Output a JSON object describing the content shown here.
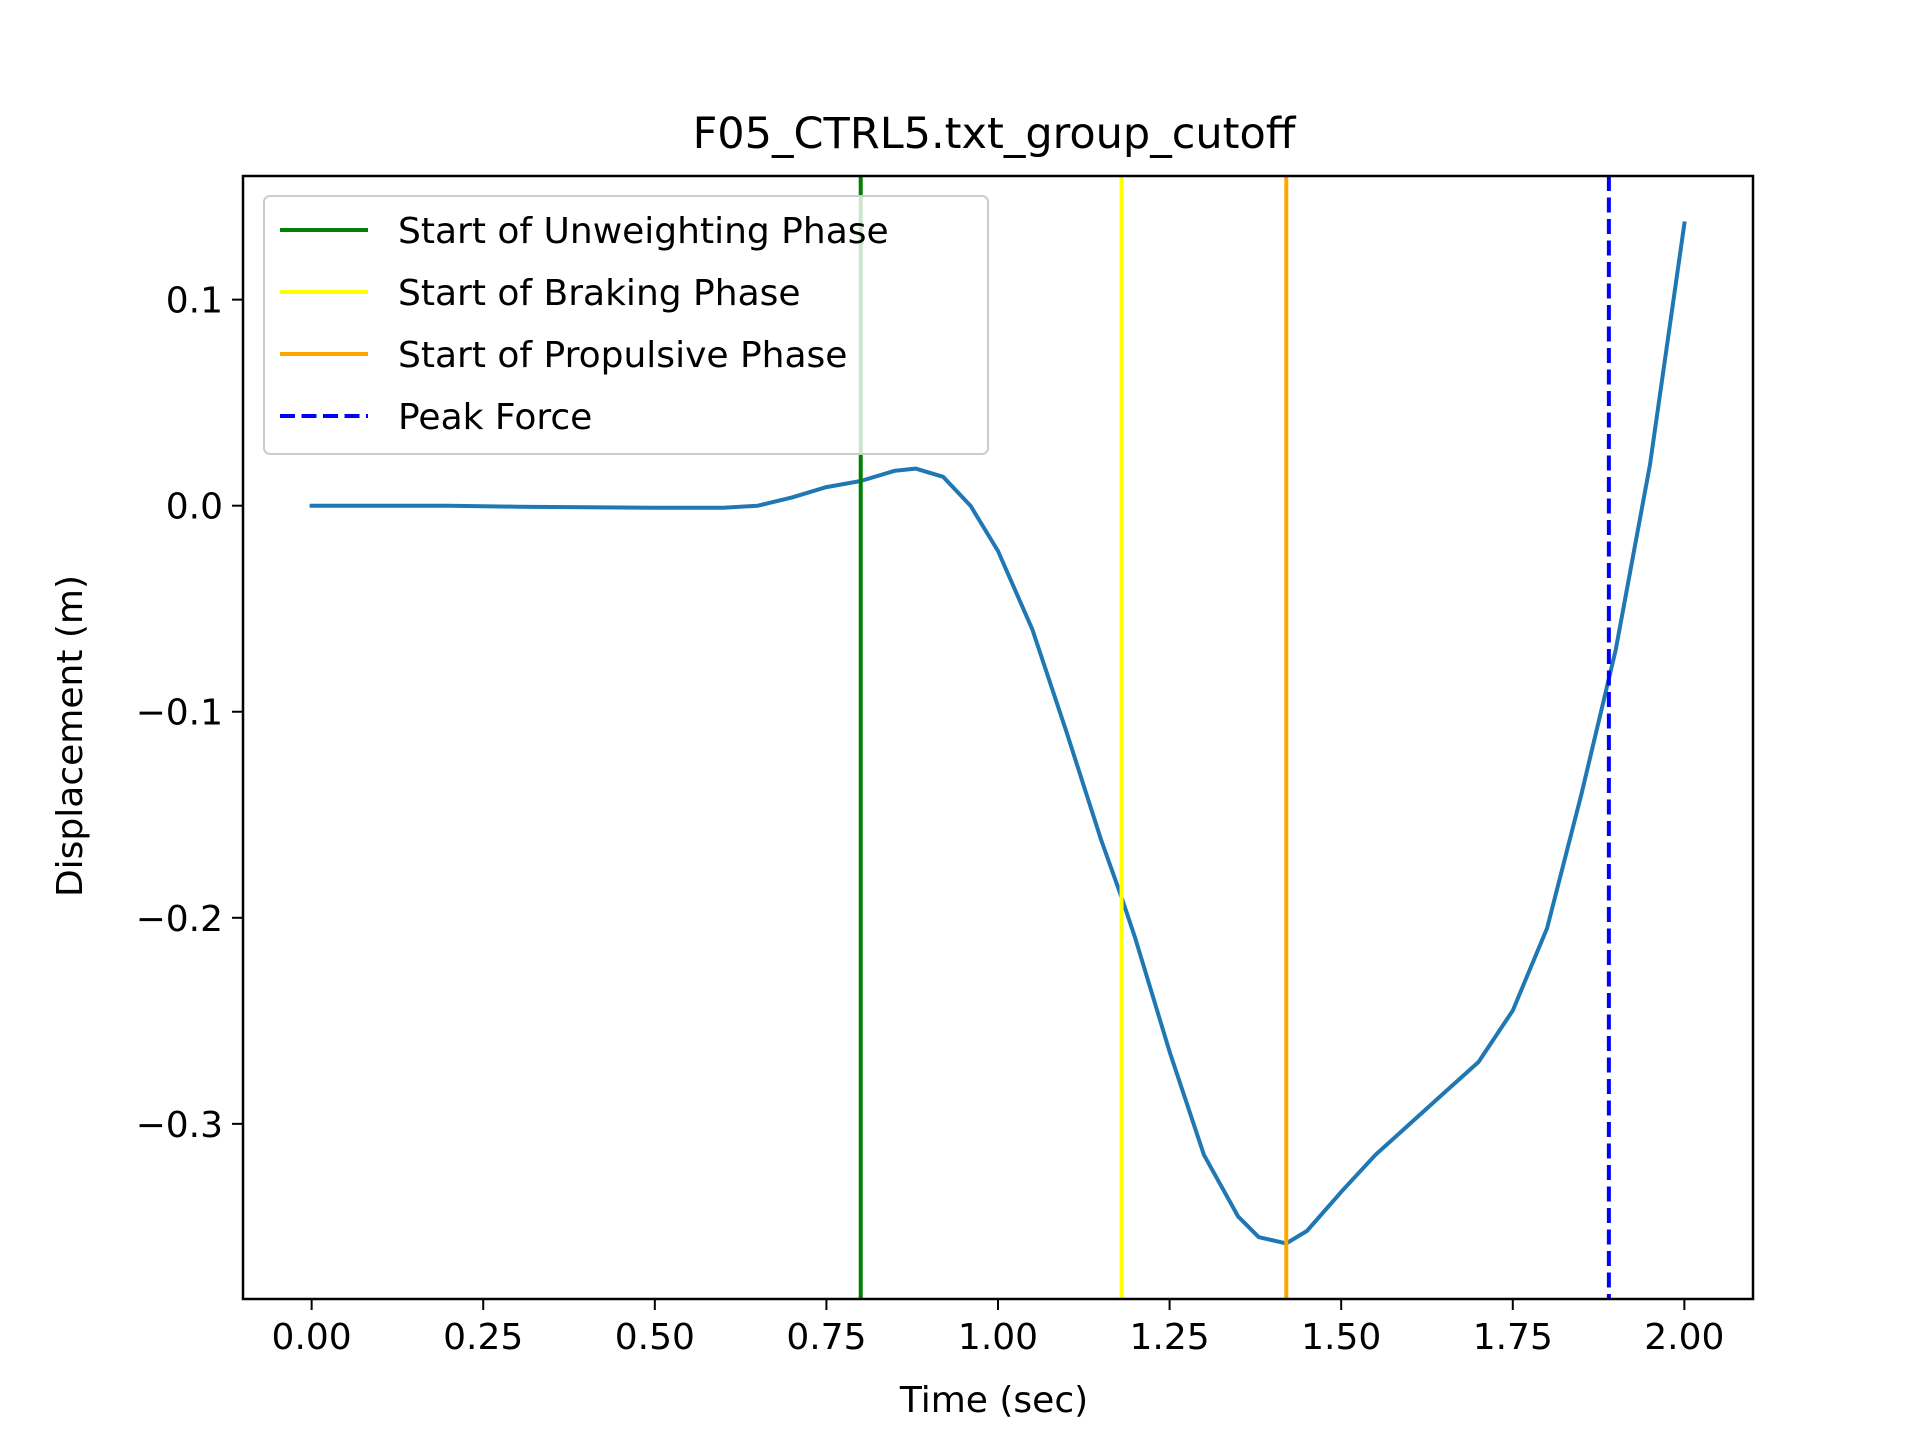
{
  "chart_data": {
    "type": "line",
    "title": "F05_CTRL5.txt_group_cutoff",
    "xlabel": "Time (sec)",
    "ylabel": "Displacement (m)",
    "xlim": [
      -0.1,
      2.1
    ],
    "ylim": [
      -0.385,
      0.16
    ],
    "xticks": [
      0.0,
      0.25,
      0.5,
      0.75,
      1.0,
      1.25,
      1.5,
      1.75,
      2.0
    ],
    "xtick_labels": [
      "0.00",
      "0.25",
      "0.50",
      "0.75",
      "1.00",
      "1.25",
      "1.50",
      "1.75",
      "2.00"
    ],
    "yticks": [
      0.1,
      0.0,
      -0.1,
      -0.2,
      -0.3
    ],
    "ytick_labels": [
      "0.1",
      "0.0",
      "−0.1",
      "−0.2",
      "−0.3"
    ],
    "grid": false,
    "legend_position": "top-left",
    "series": [
      {
        "name": "Displacement",
        "color": "#1f77b4",
        "x": [
          0.0,
          0.1,
          0.2,
          0.3,
          0.4,
          0.5,
          0.6,
          0.65,
          0.7,
          0.75,
          0.8,
          0.85,
          0.88,
          0.92,
          0.96,
          1.0,
          1.05,
          1.1,
          1.15,
          1.18,
          1.2,
          1.25,
          1.3,
          1.35,
          1.38,
          1.42,
          1.45,
          1.5,
          1.55,
          1.6,
          1.65,
          1.7,
          1.75,
          1.8,
          1.85,
          1.9,
          1.95,
          2.0
        ],
        "y": [
          0.0,
          0.0,
          0.0,
          -0.0005,
          -0.0008,
          -0.001,
          -0.001,
          0.0,
          0.004,
          0.009,
          0.012,
          0.017,
          0.018,
          0.014,
          0.0,
          -0.022,
          -0.06,
          -0.11,
          -0.162,
          -0.19,
          -0.21,
          -0.265,
          -0.315,
          -0.345,
          -0.355,
          -0.358,
          -0.352,
          -0.333,
          -0.315,
          -0.3,
          -0.285,
          -0.27,
          -0.245,
          -0.205,
          -0.14,
          -0.07,
          0.02,
          0.137
        ]
      }
    ],
    "vlines": [
      {
        "name": "Start of Unweighting Phase",
        "x": 0.8,
        "color": "#008000",
        "style": "solid"
      },
      {
        "name": "Start of Braking Phase",
        "x": 1.18,
        "color": "#ffff00",
        "style": "solid"
      },
      {
        "name": "Start of Propulsive Phase",
        "x": 1.42,
        "color": "#ffa500",
        "style": "solid"
      },
      {
        "name": "Peak Force",
        "x": 1.89,
        "color": "#0000ff",
        "style": "dashed"
      }
    ],
    "legend": [
      "Start of Unweighting Phase",
      "Start of Braking Phase",
      "Start of Propulsive Phase",
      "Peak Force"
    ]
  }
}
